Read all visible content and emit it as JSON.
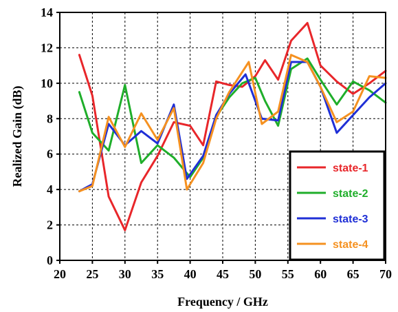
{
  "chart_data": {
    "type": "line",
    "title": "",
    "xlabel": "Frequency / GHz",
    "ylabel": "Realized Gain (dB)",
    "xlim": [
      20,
      70
    ],
    "ylim": [
      0,
      14
    ],
    "xticks": [
      20,
      25,
      30,
      35,
      40,
      45,
      50,
      55,
      60,
      65,
      70
    ],
    "yticks": [
      0,
      2,
      4,
      6,
      8,
      10,
      12,
      14
    ],
    "grid": true,
    "legend_position": "bottom-right",
    "series": [
      {
        "name": "state-1",
        "color": "#e8262a",
        "x": [
          23,
          25,
          27.5,
          30,
          32.5,
          35,
          37.5,
          40,
          42,
          44,
          46,
          48,
          50,
          51.5,
          53.5,
          55.5,
          58,
          60,
          62.5,
          65,
          67.5,
          70
        ],
        "y": [
          11.6,
          9.3,
          3.6,
          1.7,
          4.4,
          5.9,
          7.8,
          7.6,
          6.5,
          10.1,
          9.9,
          9.8,
          10.4,
          11.3,
          10.2,
          12.4,
          13.4,
          11.0,
          10.1,
          9.4,
          10.0,
          10.7
        ]
      },
      {
        "name": "state-2",
        "color": "#1fae2a",
        "x": [
          23,
          25,
          27.5,
          30,
          32.5,
          35,
          37.5,
          40,
          42,
          44,
          46,
          48,
          50,
          51.5,
          53.5,
          55.5,
          58,
          60,
          62.5,
          65,
          67.5,
          70
        ],
        "y": [
          9.5,
          7.2,
          6.2,
          9.9,
          5.5,
          6.5,
          5.8,
          4.7,
          5.8,
          8.1,
          9.2,
          10.0,
          10.3,
          9.0,
          7.6,
          10.8,
          11.4,
          10.2,
          8.8,
          10.1,
          9.6,
          8.9
        ]
      },
      {
        "name": "state-3",
        "color": "#1f2fd6",
        "x": [
          23,
          25,
          27.5,
          30,
          32.5,
          35,
          37.5,
          39.5,
          42,
          44,
          46,
          48.5,
          51,
          53.5,
          55.5,
          58,
          60,
          62.5,
          65,
          67.5,
          70
        ],
        "y": [
          3.9,
          4.3,
          7.7,
          6.5,
          7.3,
          6.6,
          8.8,
          4.6,
          5.9,
          8.2,
          9.4,
          10.5,
          8.0,
          7.9,
          11.2,
          11.2,
          9.8,
          7.2,
          8.2,
          9.2,
          10.0
        ]
      },
      {
        "name": "state-4",
        "color": "#f59120",
        "x": [
          23,
          25,
          27.5,
          30,
          32.5,
          35,
          37.5,
          39.5,
          42,
          44,
          46,
          49,
          51,
          53.5,
          55.5,
          58,
          60,
          62.5,
          65,
          67.5,
          70
        ],
        "y": [
          3.9,
          4.2,
          8.1,
          6.4,
          8.3,
          6.8,
          8.6,
          4.0,
          5.5,
          8.0,
          9.5,
          11.2,
          7.7,
          8.4,
          11.6,
          11.2,
          9.8,
          7.8,
          8.4,
          10.4,
          10.3
        ]
      }
    ]
  }
}
